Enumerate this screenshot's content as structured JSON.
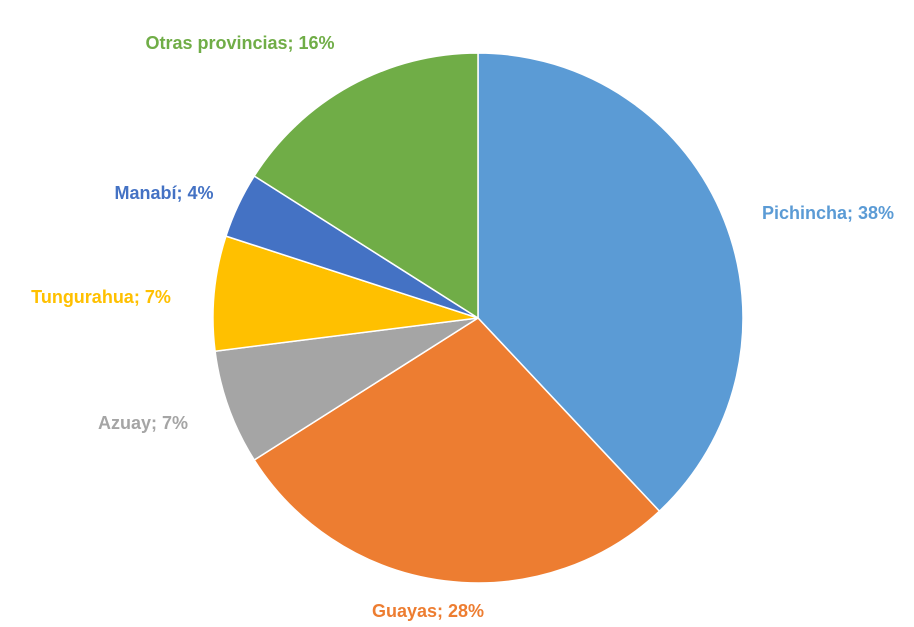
{
  "chart_data": {
    "type": "pie",
    "values": [
      38,
      28,
      7,
      7,
      4,
      16
    ],
    "value_labels": [
      "Pichincha; 38%",
      "Guayas; 28%",
      "Azuay; 7%",
      "Tungurahua; 7%",
      "Manabí; 4%",
      "Otras provincias; 16%"
    ],
    "colors": [
      "#5b9bd5",
      "#ed7d31",
      "#a5a5a5",
      "#ffc000",
      "#4472c4",
      "#70ad47"
    ]
  }
}
